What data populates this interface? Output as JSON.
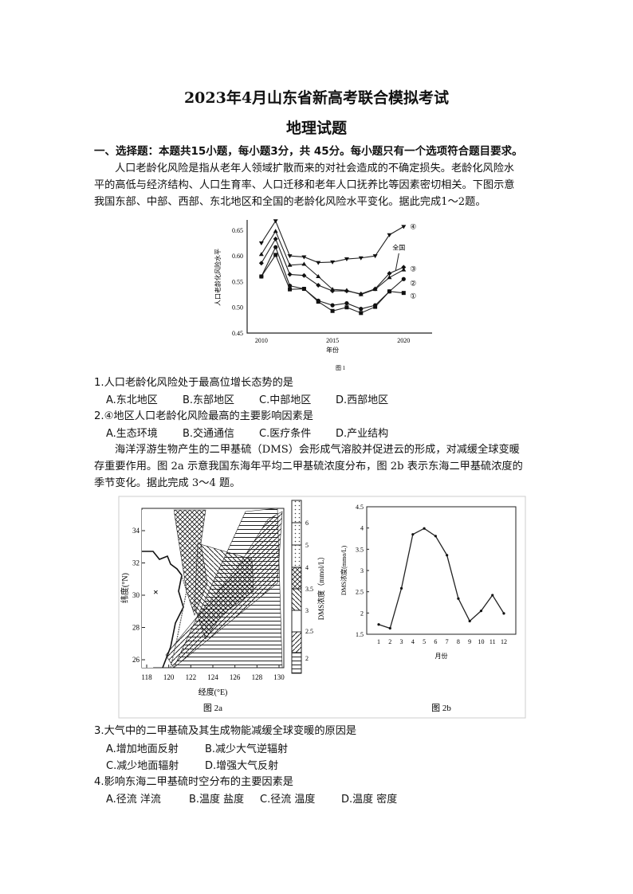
{
  "title": "2023年4月山东省新高考联合模拟考试",
  "subtitle": "地理试题",
  "section": "一、选择题：本题共15小题，每小题3分，共 45分。每小题只有一个选项符合题目要求。",
  "intro1": [
    "人口老龄化风险是指从老年人领域扩散而来的对社会造成的不确定损失。老龄化风险水",
    "平的高低与经济结构、人口生育率、人口迁移和老年人口抚养比等因素密切相关。下图示意",
    "我国东部、中部、西部、东北地区和全国的老龄化风险水平变化。据此完成1～2题。"
  ],
  "intro2": [
    "海洋浮游生物产生的二甲基硫（DMS）会形成气溶胶并促进云的形成，对减缓全球变暖",
    "存重要作用。图 2a 示意我国东海年平均二甲基硫浓度分布，图 2b 表示东海二甲基硫浓度的",
    "季节变化。据此完成 3～4 题。"
  ],
  "questions": [
    {
      "stem": "1.人口老龄化风险处于最高位增长态势的是",
      "options": [
        "A.东北地区",
        "B.东部地区",
        "C.中部地区",
        "D.西部地区"
      ]
    },
    {
      "stem": "2.④地区人口老龄化风险最高的主要影响因素是",
      "options": [
        "A.生态环境",
        "B.交通通信",
        "C.医疗条件",
        "D.产业结构"
      ]
    },
    {
      "stem": "3.大气中的二甲基硫及其生成物能减缓全球变暖的原因是",
      "options": [
        "A.增加地面反射",
        "B.减少大气逆辐射",
        "C.减少地面辐射",
        "D.增强大气反射"
      ]
    },
    {
      "stem": "4.影响东海二甲基硫时空分布的主要因素是",
      "options": [
        "A.径流 洋流",
        "B.温度 盐度",
        "C.径流 温度",
        "D.温度 密度"
      ]
    }
  ],
  "chart_data": [
    {
      "type": "line",
      "caption": "图 1",
      "xlabel": "年份",
      "ylabel": "人口老龄化风险水平",
      "xlim": [
        2009,
        2022
      ],
      "ylim": [
        0.45,
        0.67
      ],
      "xticks": [
        2010,
        2015,
        2020
      ],
      "yticks": [
        0.45,
        0.5,
        0.55,
        0.6,
        0.65
      ],
      "x": [
        2010,
        2011,
        2012,
        2013,
        2014,
        2015,
        2016,
        2017,
        2018,
        2019,
        2020
      ],
      "series": [
        {
          "name": "④",
          "marker": "triangle-down",
          "values": [
            0.625,
            0.668,
            0.6,
            0.598,
            0.587,
            0.588,
            0.594,
            0.596,
            0.6,
            0.641,
            0.657
          ]
        },
        {
          "name": "③",
          "marker": "triangle-up",
          "values": [
            0.603,
            0.648,
            0.582,
            0.584,
            0.56,
            0.535,
            0.533,
            0.525,
            0.535,
            0.558,
            0.573
          ]
        },
        {
          "name": "全国",
          "marker": "diamond",
          "values": [
            0.586,
            0.633,
            0.564,
            0.562,
            0.543,
            0.532,
            0.532,
            0.526,
            0.536,
            0.566,
            0.578
          ]
        },
        {
          "name": "②",
          "marker": "circle",
          "values": [
            0.56,
            0.617,
            0.542,
            0.536,
            0.513,
            0.504,
            0.508,
            0.497,
            0.504,
            0.531,
            0.555
          ]
        },
        {
          "name": "①",
          "marker": "square",
          "values": [
            0.56,
            0.602,
            0.535,
            0.536,
            0.511,
            0.493,
            0.5,
            0.489,
            0.501,
            0.531,
            0.528
          ]
        }
      ]
    },
    {
      "type": "map",
      "caption": "图 2a",
      "xlabel": "经度(°E)",
      "ylabel": "纬度(°N)",
      "xticks": [
        118,
        120,
        122,
        124,
        126,
        128,
        130
      ],
      "yticks": [
        26,
        28,
        30,
        32,
        34
      ],
      "legend_title": "DMS浓度（mmol/L）",
      "legend_ticks": [
        "2",
        "2.5",
        "3",
        "3.5",
        "4",
        "5",
        "6"
      ]
    },
    {
      "type": "line",
      "caption": "图 2b",
      "xlabel": "月份",
      "ylabel": "DMS浓度(mmo/L)",
      "ylim": [
        1.5,
        4.5
      ],
      "yticks": [
        "1.5",
        "2",
        "2.5",
        "3",
        "3.5",
        "4",
        "4.5"
      ],
      "categories": [
        1,
        2,
        3,
        4,
        5,
        6,
        7,
        8,
        9,
        10,
        11,
        12
      ],
      "values": [
        1.73,
        1.64,
        2.58,
        3.85,
        3.99,
        3.81,
        3.36,
        2.34,
        1.81,
        2.05,
        2.42,
        1.99
      ]
    }
  ]
}
